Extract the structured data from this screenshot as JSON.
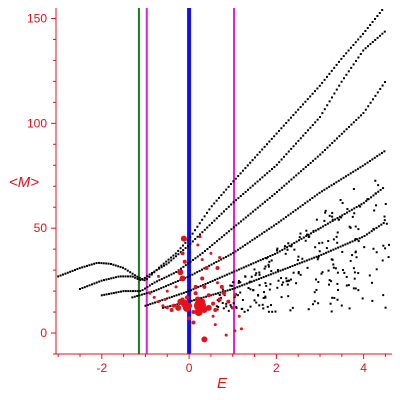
{
  "chart_data": {
    "type": "scatter",
    "xlabel": "E",
    "ylabel": "<M>",
    "xlim": [
      -3.05,
      4.65
    ],
    "ylim": [
      -10,
      155
    ],
    "x_ticks": [
      -2,
      0,
      2,
      4
    ],
    "x_tick_labels": [
      "-2",
      "0",
      "2",
      "4"
    ],
    "y_ticks": [
      0,
      50,
      100,
      150
    ],
    "y_tick_labels": [
      "0",
      "50",
      "100",
      "150"
    ],
    "grid": false,
    "colors": {
      "axis": "#e8101a",
      "points_black": "#000000",
      "points_red": "#e8101a",
      "line_blue": "#1010ee",
      "line_magenta": "#e020e0",
      "line_green": "#108010"
    },
    "vertical_lines": [
      {
        "x": -1.15,
        "color": "#108010",
        "width": 2
      },
      {
        "x": -0.97,
        "color": "#e020e0",
        "width": 2
      },
      {
        "x": 0.0,
        "color": "#1010ee",
        "width": 4
      },
      {
        "x": 1.03,
        "color": "#e020e0",
        "width": 2
      }
    ],
    "black_curves": [
      {
        "x_start": -3.0,
        "x_end": 4.5,
        "points": [
          [
            -3.0,
            27
          ],
          [
            -2.5,
            31
          ],
          [
            -2.1,
            33.5
          ],
          [
            -1.8,
            33
          ],
          [
            -1.5,
            31
          ],
          [
            -1.2,
            27
          ],
          [
            -1.0,
            25
          ],
          [
            -0.7,
            31
          ],
          [
            -0.3,
            38
          ],
          [
            0.0,
            45
          ],
          [
            0.5,
            60
          ],
          [
            1.0,
            72
          ],
          [
            2.0,
            95
          ],
          [
            3.0,
            118
          ],
          [
            3.5,
            131
          ],
          [
            4.0,
            143
          ],
          [
            4.5,
            156
          ]
        ]
      },
      {
        "x_start": -2.5,
        "x_end": 4.5,
        "points": [
          [
            -2.5,
            21
          ],
          [
            -2.0,
            25
          ],
          [
            -1.6,
            27
          ],
          [
            -1.3,
            27
          ],
          [
            -1.1,
            25
          ],
          [
            -0.9,
            28
          ],
          [
            -0.5,
            33
          ],
          [
            0.0,
            42
          ],
          [
            0.5,
            52
          ],
          [
            1.0,
            62
          ],
          [
            2.0,
            80
          ],
          [
            3.0,
            103
          ],
          [
            3.5,
            120
          ],
          [
            4.0,
            135
          ],
          [
            4.5,
            144
          ]
        ]
      },
      {
        "x_start": -2.0,
        "x_end": 4.5,
        "points": [
          [
            -2.0,
            18
          ],
          [
            -1.5,
            20
          ],
          [
            -1.1,
            20
          ],
          [
            -0.8,
            24
          ],
          [
            -0.3,
            29
          ],
          [
            0.3,
            38
          ],
          [
            1.0,
            50
          ],
          [
            2.0,
            67
          ],
          [
            3.0,
            85
          ],
          [
            3.5,
            95
          ],
          [
            4.0,
            105
          ],
          [
            4.5,
            120
          ]
        ]
      },
      {
        "x_start": -1.3,
        "x_end": 4.5,
        "points": [
          [
            -1.3,
            17
          ],
          [
            -0.8,
            20
          ],
          [
            0.0,
            27
          ],
          [
            1.0,
            38
          ],
          [
            2.0,
            52
          ],
          [
            3.0,
            67
          ],
          [
            4.0,
            80
          ],
          [
            4.5,
            87
          ]
        ]
      },
      {
        "x_start": -1.0,
        "x_end": 4.5,
        "points": [
          [
            -1.0,
            13
          ],
          [
            0.0,
            20
          ],
          [
            1.0,
            29
          ],
          [
            2.0,
            38
          ],
          [
            3.0,
            50
          ],
          [
            4.0,
            62
          ],
          [
            4.5,
            70
          ]
        ]
      },
      {
        "x_start": -0.6,
        "x_end": 4.5,
        "points": [
          [
            -0.6,
            12
          ],
          [
            0.0,
            15
          ],
          [
            1.0,
            21
          ],
          [
            2.0,
            29
          ],
          [
            3.0,
            37
          ],
          [
            4.0,
            46
          ],
          [
            4.5,
            53
          ]
        ]
      }
    ],
    "black_scatter_region": {
      "x_range": [
        0.6,
        4.6
      ],
      "y_range": [
        10,
        75
      ],
      "count": 230
    },
    "red_points": [
      [
        -0.35,
        13,
        2
      ],
      [
        -0.2,
        15,
        3
      ],
      [
        -0.25,
        12,
        3
      ],
      [
        -0.1,
        14,
        4
      ],
      [
        -0.05,
        12,
        4
      ],
      [
        0.0,
        13,
        3
      ],
      [
        -0.15,
        16,
        2
      ],
      [
        -0.4,
        11,
        2
      ],
      [
        -0.5,
        12,
        1.5
      ],
      [
        -0.6,
        13,
        1.5
      ],
      [
        -0.7,
        15,
        1.5
      ],
      [
        -0.8,
        17,
        1.5
      ],
      [
        -0.9,
        19,
        1.5
      ],
      [
        0.15,
        19,
        2
      ],
      [
        0.2,
        16,
        3
      ],
      [
        0.25,
        13,
        6
      ],
      [
        0.22,
        10,
        4
      ],
      [
        0.3,
        15,
        3
      ],
      [
        0.35,
        11,
        3
      ],
      [
        0.45,
        12,
        3
      ],
      [
        0.55,
        14,
        2
      ],
      [
        0.6,
        11,
        2
      ],
      [
        0.7,
        16,
        2
      ],
      [
        0.8,
        19,
        2
      ],
      [
        0.9,
        15,
        2
      ],
      [
        1.0,
        12,
        1.5
      ],
      [
        1.05,
        18,
        1.5
      ],
      [
        -0.15,
        26,
        3
      ],
      [
        -0.2,
        29,
        3
      ],
      [
        -0.1,
        34,
        2
      ],
      [
        -0.15,
        38,
        2
      ],
      [
        -0.12,
        45,
        3
      ],
      [
        0.2,
        42,
        1.5
      ],
      [
        0.3,
        35,
        1.5
      ],
      [
        0.4,
        31,
        2
      ],
      [
        0.5,
        38,
        1.5
      ],
      [
        0.65,
        31,
        2
      ],
      [
        0.7,
        36,
        1.5
      ],
      [
        0.75,
        22,
        2
      ],
      [
        0.3,
        26,
        2
      ],
      [
        0.25,
        46,
        1.5
      ],
      [
        0.35,
        22,
        2
      ],
      [
        0.0,
        7,
        2
      ],
      [
        0.1,
        5,
        2
      ],
      [
        0.35,
        -3,
        3
      ],
      [
        0.6,
        4,
        1.5
      ],
      [
        1.15,
        8,
        1.5
      ],
      [
        1.2,
        2,
        1.5
      ],
      [
        1.05,
        1,
        1.5
      ],
      [
        0.85,
        -1,
        1.5
      ],
      [
        -0.5,
        20,
        1.5
      ],
      [
        -0.3,
        22,
        1.5
      ],
      [
        -0.05,
        17,
        2
      ],
      [
        0.45,
        18,
        2
      ],
      [
        0.55,
        8,
        1.5
      ],
      [
        0.65,
        24,
        1.5
      ],
      [
        -0.7,
        27,
        1.5
      ],
      [
        -0.55,
        16,
        1.5
      ],
      [
        0.1,
        10,
        2
      ],
      [
        0.15,
        22,
        2
      ]
    ]
  }
}
